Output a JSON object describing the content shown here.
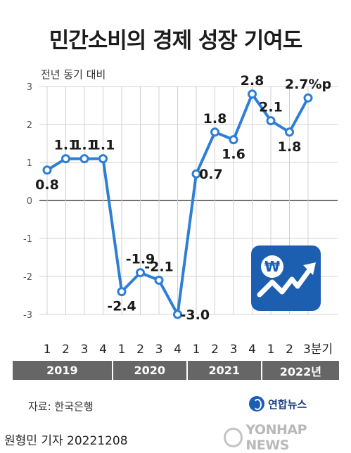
{
  "title": "민간소비의 경제 성장 기여도",
  "subtitle": "전년 동기 대비",
  "chart_data": {
    "type": "line",
    "title": "민간소비의 경제 성장 기여도",
    "ylabel": "전년 동기 대비",
    "ylim": [
      -3,
      3
    ],
    "yticks": [
      "3",
      "2",
      "1",
      "0",
      "-1",
      "-2",
      "-3"
    ],
    "ytick_values": [
      3,
      2,
      1,
      0,
      -1,
      -2,
      -3
    ],
    "grid": true,
    "x": [
      "1",
      "2",
      "3",
      "4",
      "1",
      "2",
      "3",
      "4",
      "1",
      "2",
      "3",
      "4",
      "1",
      "2",
      "3분기"
    ],
    "years": [
      "2019",
      "2020",
      "2021",
      "2022년"
    ],
    "series": [
      {
        "values": [
          0.8,
          1.1,
          1.1,
          1.1,
          -2.4,
          -1.9,
          -2.1,
          -3.0,
          0.7,
          1.8,
          1.6,
          2.8,
          2.1,
          1.8,
          2.7
        ]
      }
    ],
    "data_labels": [
      "0.8",
      "1.1",
      "1.1",
      "1.1",
      "-2.4",
      "-1.9",
      "-2.1",
      "-3.0",
      "0.7",
      "1.8",
      "1.6",
      "2.8",
      "2.1",
      "1.8",
      "2.7%p"
    ],
    "label_positions": [
      "below",
      "above",
      "above",
      "above",
      "below",
      "above",
      "above",
      "right",
      "right",
      "above",
      "below",
      "above",
      "above",
      "below",
      "above"
    ],
    "colors": {
      "line": "#2e7ed6",
      "grid": "#d0d0d0",
      "zero_line": "#444444",
      "year_bar": "#666666"
    }
  },
  "source": "자료: 한국은행",
  "logo_text": "연합뉴스",
  "credit": "원형민 기자  20221208",
  "watermark": "YONHAP NEWS",
  "icon": "won-rising-chart-icon"
}
